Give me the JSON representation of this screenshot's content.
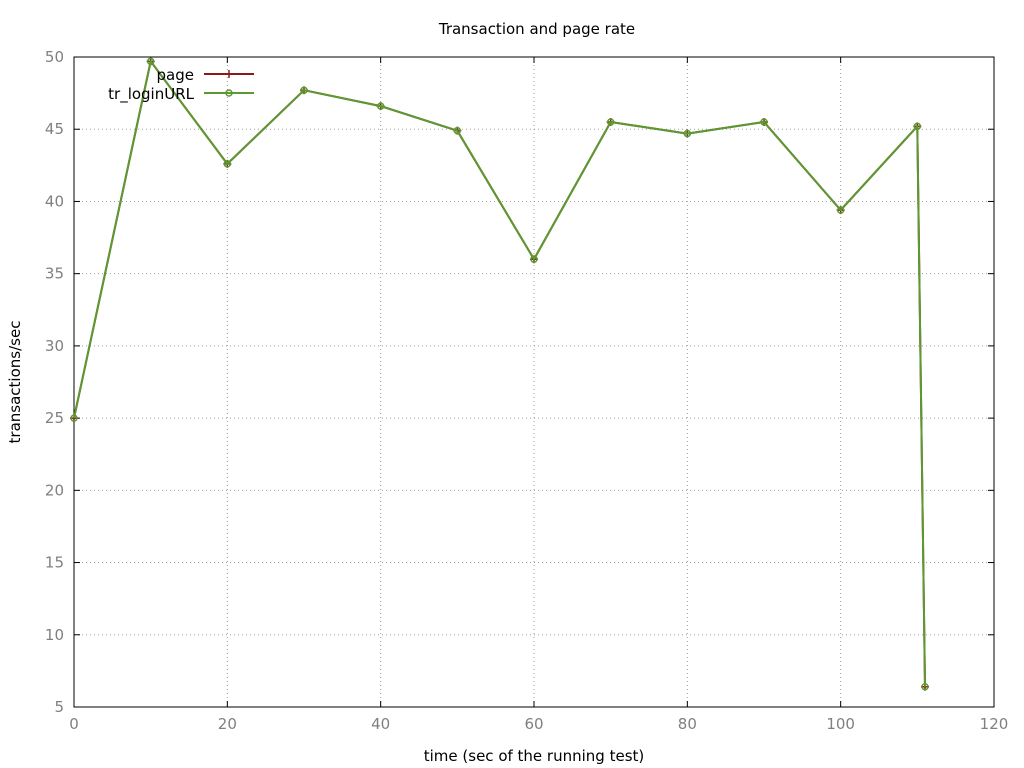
{
  "chart_data": {
    "type": "line",
    "title": "Transaction and page rate",
    "xlabel": "time (sec of the running test)",
    "ylabel": "transactions/sec",
    "xlim": [
      0,
      120
    ],
    "ylim": [
      5,
      50
    ],
    "xticks": [
      0,
      20,
      40,
      60,
      80,
      100,
      120
    ],
    "yticks": [
      5,
      10,
      15,
      20,
      25,
      30,
      35,
      40,
      45,
      50
    ],
    "grid": true,
    "legend_position": "top-left",
    "x": [
      0,
      10,
      20,
      30,
      40,
      50,
      60,
      70,
      80,
      90,
      100,
      110,
      111
    ],
    "series": [
      {
        "name": "page",
        "color": "#8b1a1a",
        "marker": "plus",
        "values": [
          25.0,
          49.7,
          42.6,
          47.7,
          46.6,
          44.9,
          36.0,
          45.5,
          44.7,
          45.5,
          39.4,
          45.2,
          6.4
        ]
      },
      {
        "name": "tr_loginURL",
        "color": "#5a9a30",
        "marker": "circle",
        "values": [
          25.0,
          49.7,
          42.6,
          47.7,
          46.6,
          44.9,
          36.0,
          45.5,
          44.7,
          45.5,
          39.4,
          45.2,
          6.4
        ]
      }
    ]
  }
}
